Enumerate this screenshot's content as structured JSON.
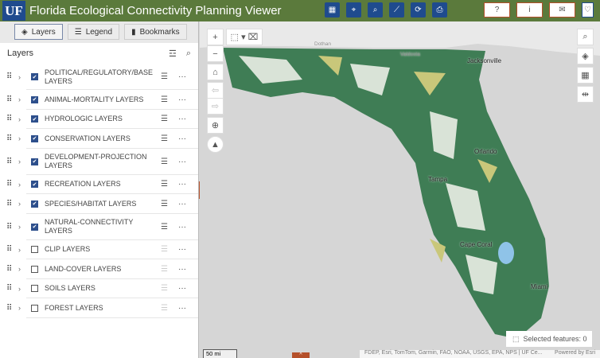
{
  "header": {
    "logo": "UF",
    "title": "Florida Ecological Connectivity Planning Viewer",
    "tools": [
      {
        "icon": "calculator-icon",
        "glyph": "▦"
      },
      {
        "icon": "map-query-icon",
        "glyph": "⌖"
      },
      {
        "icon": "zoom-search-icon",
        "glyph": "⌕"
      },
      {
        "icon": "measure-icon",
        "glyph": "⟋"
      },
      {
        "icon": "swipe-icon",
        "glyph": "⟳"
      },
      {
        "icon": "print-icon",
        "glyph": "⎙"
      }
    ],
    "buttons": [
      {
        "icon": "help-icon",
        "glyph": "?"
      },
      {
        "icon": "info-icon",
        "glyph": "i"
      },
      {
        "icon": "mail-icon",
        "glyph": "✉"
      },
      {
        "icon": "heart-icon",
        "glyph": "♡"
      }
    ]
  },
  "panel": {
    "tabs": [
      {
        "label": "Layers",
        "icon": "layers-icon",
        "glyph": "◈"
      },
      {
        "label": "Legend",
        "icon": "legend-icon",
        "glyph": "☰"
      },
      {
        "label": "Bookmarks",
        "icon": "bookmark-icon",
        "glyph": "▮"
      }
    ],
    "heading": "Layers",
    "layers": [
      {
        "label": "POLITICAL/REGULATORY/BASE LAYERS",
        "checked": true,
        "tall": true
      },
      {
        "label": "ANIMAL-MORTALITY LAYERS",
        "checked": true
      },
      {
        "label": "HYDROLOGIC LAYERS",
        "checked": true
      },
      {
        "label": "CONSERVATION LAYERS",
        "checked": true
      },
      {
        "label": "DEVELOPMENT-PROJECTION LAYERS",
        "checked": true,
        "tall": true
      },
      {
        "label": "RECREATION LAYERS",
        "checked": true
      },
      {
        "label": "SPECIES/HABITAT LAYERS",
        "checked": true
      },
      {
        "label": "NATURAL-CONNECTIVITY LAYERS",
        "checked": true,
        "tall": true
      },
      {
        "label": "CLIP LAYERS",
        "checked": false
      },
      {
        "label": "LAND-COVER LAYERS",
        "checked": false
      },
      {
        "label": "SOILS LAYERS",
        "checked": false
      },
      {
        "label": "FOREST LAYERS",
        "checked": false
      }
    ]
  },
  "map": {
    "places": [
      "Dothan",
      "Valdosta",
      "Jacksonville",
      "Orlando",
      "Tampa",
      "Cape Coral",
      "Miami"
    ],
    "selected": "Selected features: 0",
    "scale": "50 mi",
    "attribution": "FDEP, Esri, TomTom, Garmin, FAO, NOAA, USGS, EPA, NPS | UF Ce...",
    "powered": "Powered by Esri"
  },
  "colors": {
    "header": "#5b7a3c",
    "tool": "#1f4b8e",
    "accent": "#b5502a",
    "land": "#3f7d55"
  }
}
